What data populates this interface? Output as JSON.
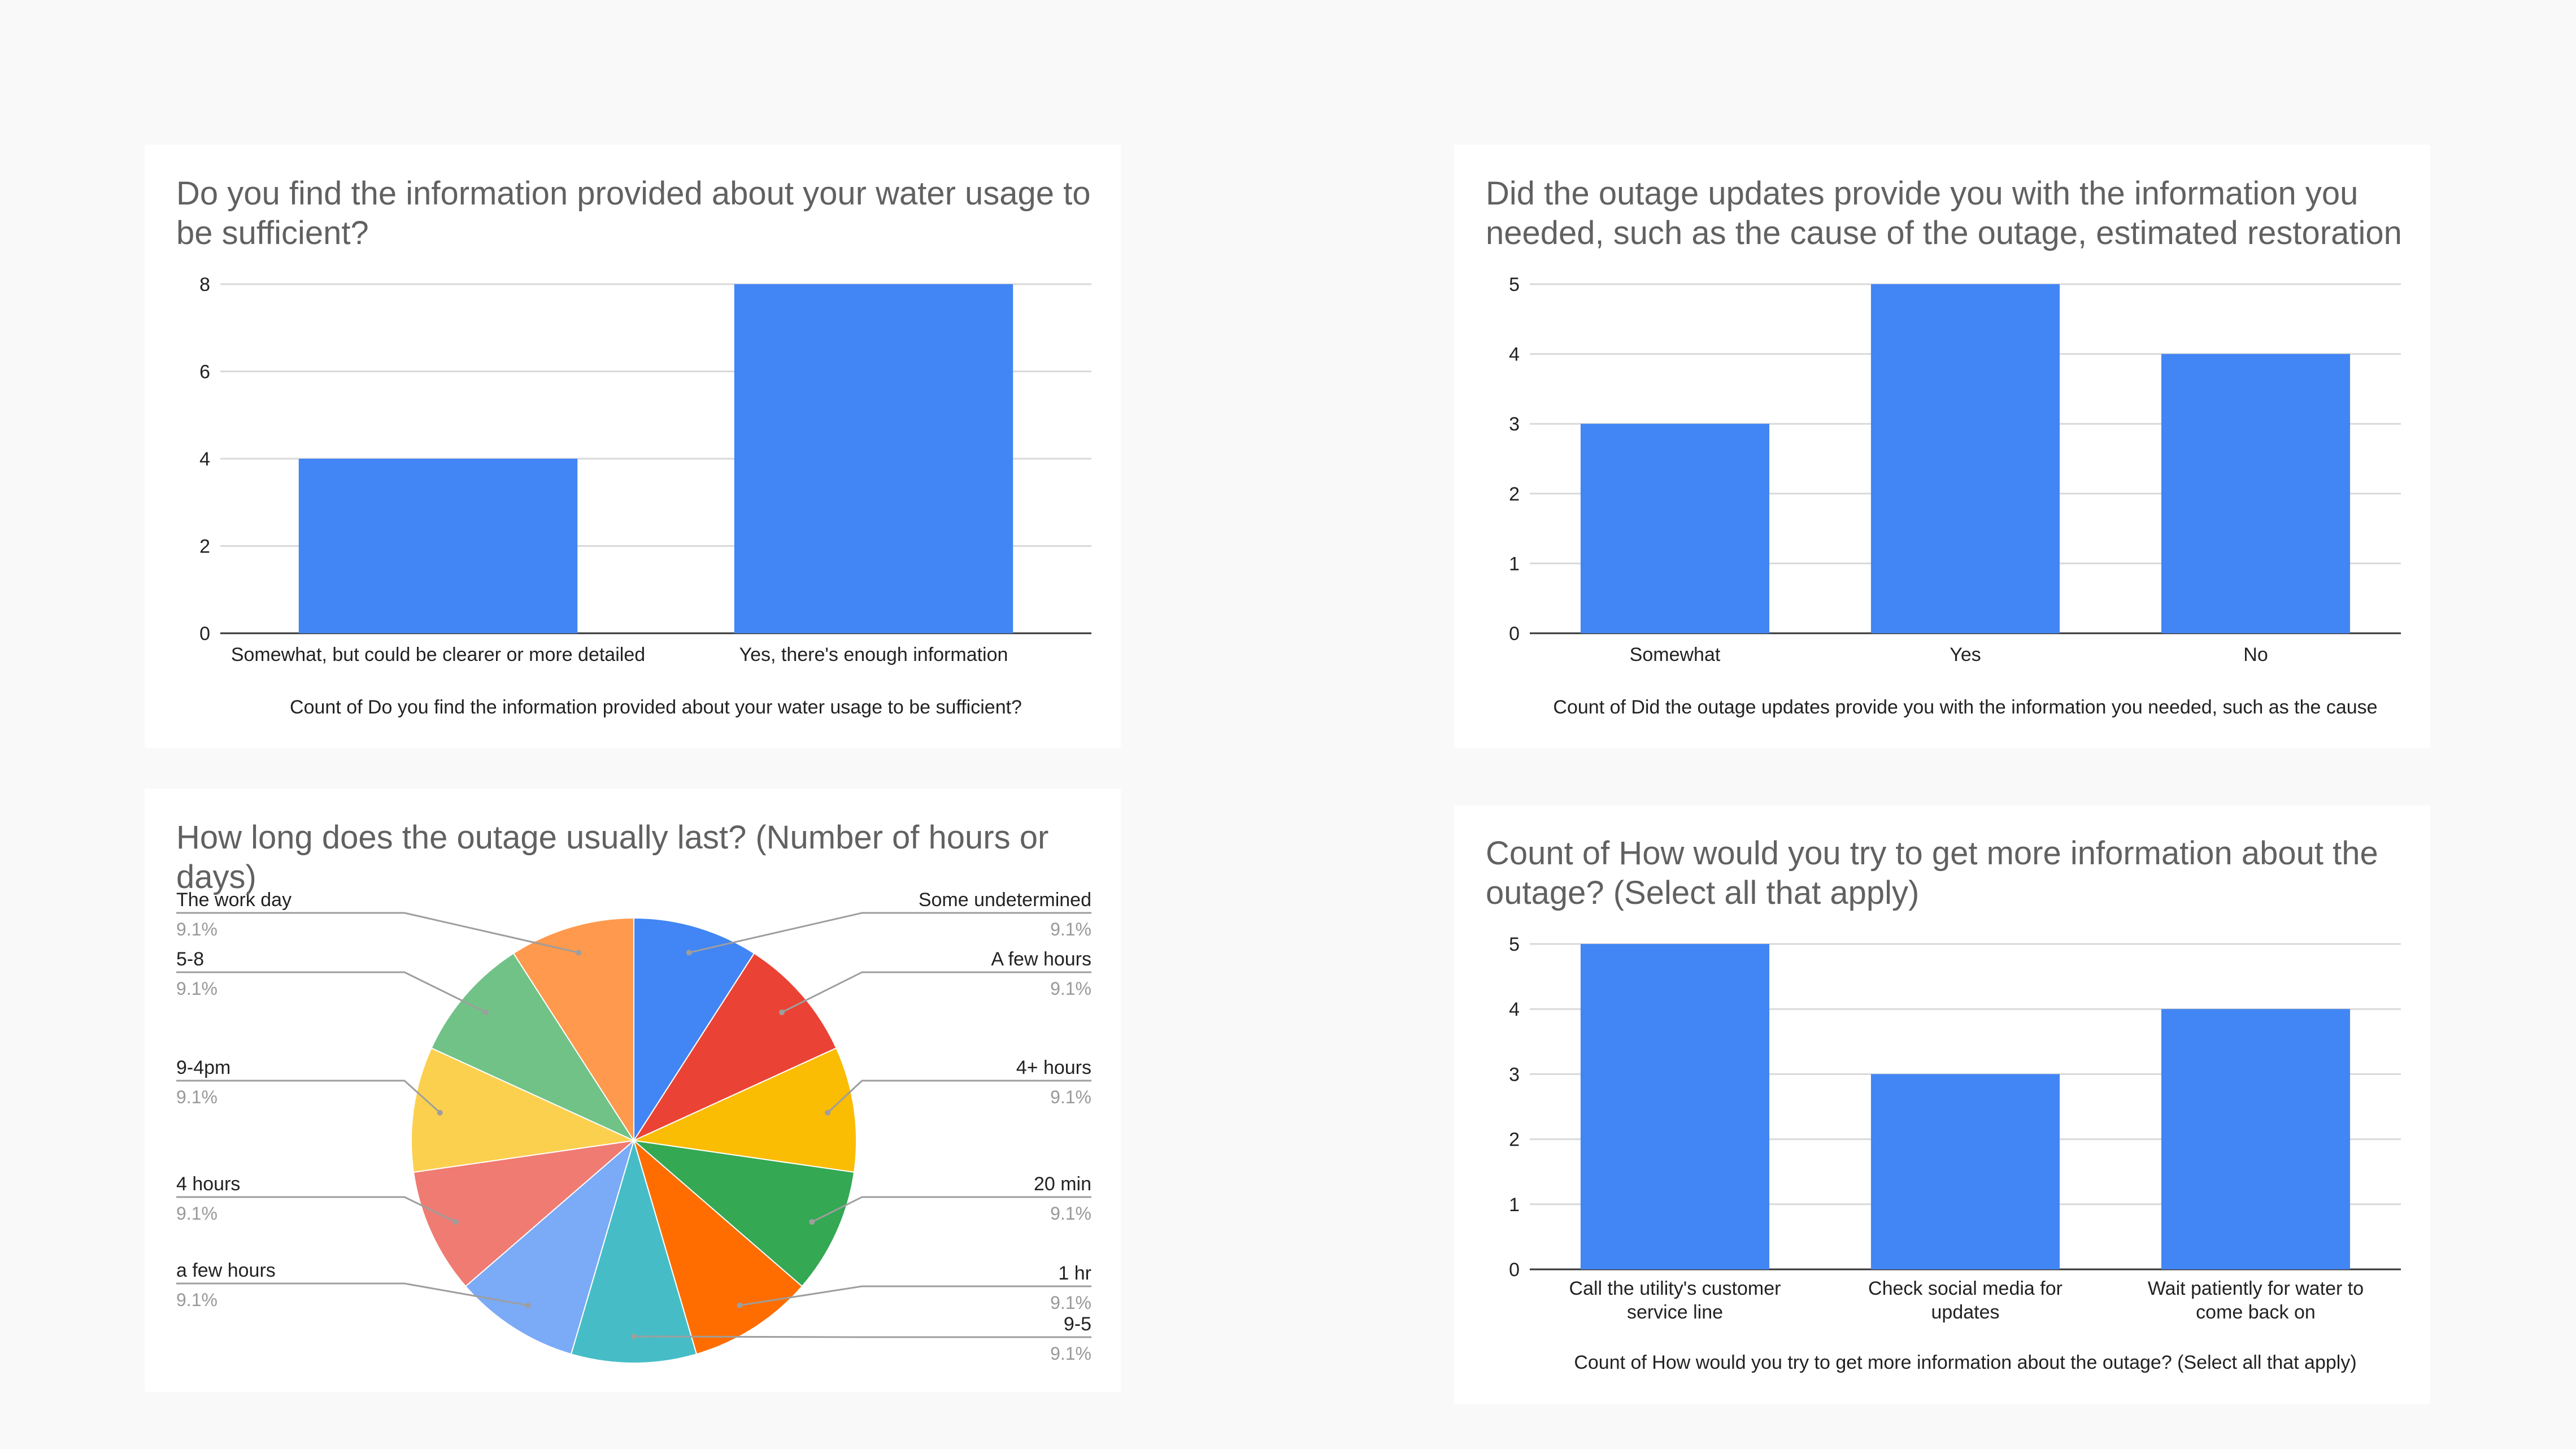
{
  "colors": {
    "bar": "#4285f4",
    "grid": "#d9d9d9",
    "axis": "#333333",
    "title": "#616161",
    "text": "#222222",
    "pct": "#999999",
    "leader": "#9e9e9e"
  },
  "chart_data": [
    {
      "type": "bar",
      "title": "Do you find the information provided about your water usage to be sufficient?",
      "categories": [
        "Somewhat, but could be clearer or more detailed",
        "Yes, there's enough information"
      ],
      "values": [
        4,
        8
      ],
      "ylim": [
        0,
        8
      ],
      "yticks": [
        "0",
        "2",
        "4",
        "6",
        "8"
      ],
      "xlabel": "Count of Do you find the information provided about your water usage to be sufficient?",
      "ylabel": "",
      "grid": true
    },
    {
      "type": "bar",
      "title": "Did the outage updates provide you with the information you needed, such as the cause of the outage, estimated restoration",
      "categories": [
        "Somewhat",
        "Yes",
        "No"
      ],
      "values": [
        3,
        5,
        4
      ],
      "ylim": [
        0,
        5
      ],
      "yticks": [
        "0",
        "1",
        "2",
        "3",
        "4",
        "5"
      ],
      "xlabel": "Count of Did the outage updates provide you with the information you needed, such as the cause",
      "ylabel": "",
      "grid": true
    },
    {
      "type": "pie",
      "title": "How long does the outage usually last? (Number of hours or days)",
      "slices": [
        {
          "label": "Some undetermined",
          "pct": "9.1%",
          "value": 1,
          "color": "#4285f4"
        },
        {
          "label": "A few hours",
          "pct": "9.1%",
          "value": 1,
          "color": "#ea4335"
        },
        {
          "label": "4+ hours",
          "pct": "9.1%",
          "value": 1,
          "color": "#fbbc04"
        },
        {
          "label": "20 min",
          "pct": "9.1%",
          "value": 1,
          "color": "#34a853"
        },
        {
          "label": "1 hr",
          "pct": "9.1%",
          "value": 1,
          "color": "#ff6d01"
        },
        {
          "label": "9-5",
          "pct": "9.1%",
          "value": 1,
          "color": "#46bdc6"
        },
        {
          "label": "a few hours",
          "pct": "9.1%",
          "value": 1,
          "color": "#7baaf7"
        },
        {
          "label": "4 hours",
          "pct": "9.1%",
          "value": 1,
          "color": "#f07b72"
        },
        {
          "label": "9-4pm",
          "pct": "9.1%",
          "value": 1,
          "color": "#fcd04f"
        },
        {
          "label": "5-8",
          "pct": "9.1%",
          "value": 1,
          "color": "#71c287"
        },
        {
          "label": "The work day",
          "pct": "9.1%",
          "value": 1,
          "color": "#ff994d"
        }
      ]
    },
    {
      "type": "bar",
      "title": "Count of How would you try to get more information about the outage? (Select all that apply)",
      "categories": [
        "Call the utility's customer service line",
        "Check social media for updates",
        "Wait patiently for water to come back on"
      ],
      "category_lines": [
        [
          "Call the utility's customer",
          "service line"
        ],
        [
          "Check social media for",
          "updates"
        ],
        [
          "Wait patiently for water to",
          "come back on"
        ]
      ],
      "values": [
        5,
        3,
        4
      ],
      "ylim": [
        0,
        5
      ],
      "yticks": [
        "0",
        "1",
        "2",
        "3",
        "4",
        "5"
      ],
      "xlabel": "Count of How would you try to get more information about the outage? (Select all that apply)",
      "ylabel": "",
      "grid": true
    }
  ]
}
